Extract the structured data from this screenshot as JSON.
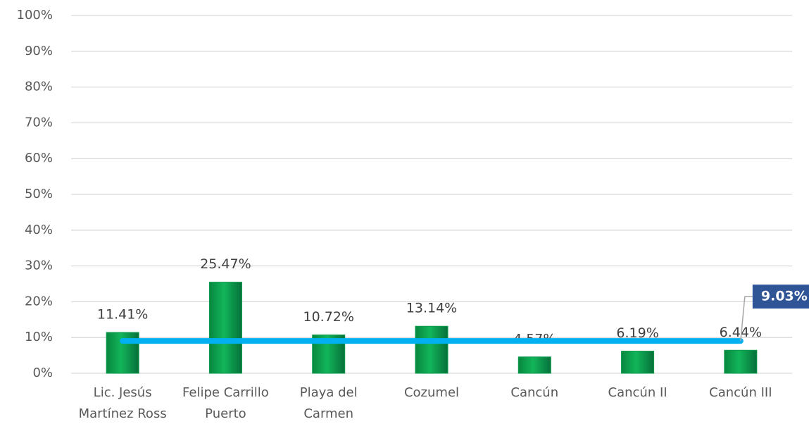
{
  "chart_data": {
    "type": "bar",
    "categories": [
      "Lic. Jesús Martínez Ross",
      "Felipe Carrillo Puerto",
      "Playa del Carmen",
      "Cozumel",
      "Cancún",
      "Cancún II",
      "Cancún III"
    ],
    "values": [
      11.41,
      25.47,
      10.72,
      13.14,
      4.57,
      6.19,
      6.44
    ],
    "value_labels": [
      "11.41%",
      "25.47%",
      "10.72%",
      "13.14%",
      "4.57%",
      "6.19%",
      "6.44%"
    ],
    "color": "#0b9a4b",
    "average": 9.03,
    "average_label": "9.03%",
    "average_color": "#00b0f0",
    "ylim": [
      0,
      100
    ],
    "yticks": [
      {
        "value": 0,
        "label": "0%"
      },
      {
        "value": 10,
        "label": "10%"
      },
      {
        "value": 20,
        "label": "20%"
      },
      {
        "value": 30,
        "label": "30%"
      },
      {
        "value": 40,
        "label": "40%"
      },
      {
        "value": 50,
        "label": "50%"
      },
      {
        "value": 60,
        "label": "60%"
      },
      {
        "value": 70,
        "label": "70%"
      },
      {
        "value": 80,
        "label": "80%"
      },
      {
        "value": 90,
        "label": "90%"
      },
      {
        "value": 100,
        "label": "100%"
      }
    ],
    "grid": true
  }
}
